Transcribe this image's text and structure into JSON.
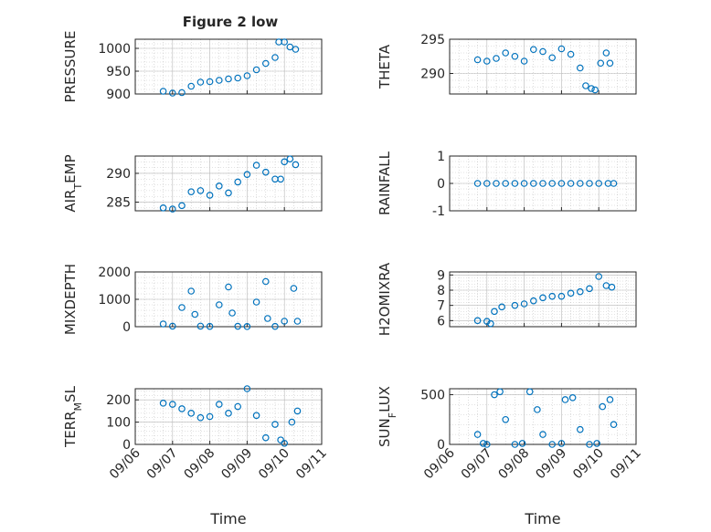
{
  "figure_title": "Figure 2 low",
  "colors": {
    "marker": "#0072BD",
    "axis": "#262626",
    "grid": "#b8b8b8"
  },
  "chart_data": [
    {
      "type": "scatter",
      "ylabel": "PRESSURE",
      "xlim": [
        0,
        5
      ],
      "ylim": [
        900,
        1020
      ],
      "yticks": [
        900,
        950,
        1000
      ],
      "xticklabels": [],
      "x": [
        0.75,
        1.0,
        1.25,
        1.5,
        1.75,
        2.0,
        2.25,
        2.5,
        2.75,
        3.0,
        3.25,
        3.5,
        3.75,
        3.85,
        4.0,
        4.15,
        4.3
      ],
      "y": [
        906,
        902,
        903,
        917,
        926,
        927,
        930,
        933,
        935,
        940,
        953,
        967,
        980,
        1014,
        1014,
        1003,
        998
      ]
    },
    {
      "type": "scatter",
      "ylabel": "THETA",
      "xlim": [
        0,
        5
      ],
      "ylim": [
        287,
        295
      ],
      "yticks": [
        290,
        295
      ],
      "xticklabels": [],
      "x": [
        0.75,
        1.0,
        1.25,
        1.5,
        1.75,
        2.0,
        2.25,
        2.5,
        2.75,
        3.0,
        3.25,
        3.5,
        3.65,
        3.8,
        3.9,
        4.05,
        4.2,
        4.3
      ],
      "y": [
        292.0,
        291.8,
        292.2,
        293.0,
        292.5,
        291.8,
        293.5,
        293.2,
        292.3,
        293.6,
        292.8,
        290.8,
        288.2,
        287.8,
        287.6,
        291.5,
        293.0,
        291.5
      ]
    },
    {
      "type": "scatter",
      "ylabel": "AIR_TEMP",
      "xlim": [
        0,
        5
      ],
      "ylim": [
        283.5,
        293
      ],
      "yticks": [
        285,
        290
      ],
      "xticklabels": [],
      "x": [
        0.75,
        1.0,
        1.25,
        1.5,
        1.75,
        2.0,
        2.25,
        2.5,
        2.75,
        3.0,
        3.25,
        3.5,
        3.75,
        3.9,
        4.0,
        4.15,
        4.3
      ],
      "y": [
        284.0,
        283.8,
        284.4,
        286.8,
        287.0,
        286.2,
        287.8,
        286.6,
        288.5,
        289.8,
        291.4,
        290.2,
        289.0,
        289.0,
        292.0,
        292.5,
        291.5
      ]
    },
    {
      "type": "scatter",
      "ylabel": "RAINFALL",
      "xlim": [
        0,
        5
      ],
      "ylim": [
        -1,
        1
      ],
      "yticks": [
        -1,
        0,
        1
      ],
      "xticklabels": [],
      "x": [
        0.75,
        1.0,
        1.25,
        1.5,
        1.75,
        2.0,
        2.25,
        2.5,
        2.75,
        3.0,
        3.25,
        3.5,
        3.75,
        4.0,
        4.25,
        4.4
      ],
      "y": [
        0,
        0,
        0,
        0,
        0,
        0,
        0,
        0,
        0,
        0,
        0,
        0,
        0,
        0,
        0,
        0
      ]
    },
    {
      "type": "scatter",
      "ylabel": "MIXDEPTH",
      "xlim": [
        0,
        5
      ],
      "ylim": [
        0,
        2000
      ],
      "yticks": [
        0,
        1000,
        2000
      ],
      "xticklabels": [],
      "x": [
        0.75,
        1.0,
        1.25,
        1.5,
        1.6,
        1.75,
        2.0,
        2.25,
        2.5,
        2.6,
        2.75,
        3.0,
        3.25,
        3.5,
        3.55,
        3.75,
        4.0,
        4.25,
        4.35
      ],
      "y": [
        100,
        20,
        700,
        1300,
        450,
        20,
        10,
        800,
        1450,
        500,
        15,
        5,
        900,
        1650,
        300,
        10,
        200,
        1400,
        200
      ]
    },
    {
      "type": "scatter",
      "ylabel": "H2OMIXRA",
      "xlim": [
        0,
        5
      ],
      "ylim": [
        5.6,
        9.2
      ],
      "yticks": [
        6,
        7,
        8,
        9
      ],
      "xticklabels": [],
      "x": [
        0.75,
        1.0,
        1.1,
        1.2,
        1.4,
        1.75,
        2.0,
        2.25,
        2.5,
        2.75,
        3.0,
        3.25,
        3.5,
        3.75,
        4.0,
        4.2,
        4.35
      ],
      "y": [
        6.0,
        5.95,
        5.8,
        6.6,
        6.9,
        7.0,
        7.1,
        7.3,
        7.5,
        7.6,
        7.6,
        7.8,
        7.9,
        8.1,
        8.9,
        8.3,
        8.2
      ]
    },
    {
      "type": "scatter",
      "ylabel": "TERR_MSL",
      "xlim": [
        0,
        5
      ],
      "ylim": [
        0,
        250
      ],
      "yticks": [
        0,
        100,
        200
      ],
      "xticklabels": [
        "09/06",
        "09/07",
        "09/08",
        "09/09",
        "09/10",
        "09/11"
      ],
      "xlabel": "Time",
      "x": [
        0.75,
        1.0,
        1.25,
        1.5,
        1.75,
        2.0,
        2.25,
        2.5,
        2.75,
        3.0,
        3.25,
        3.5,
        3.75,
        3.9,
        4.0,
        4.2,
        4.35
      ],
      "y": [
        185,
        180,
        160,
        140,
        120,
        125,
        180,
        140,
        170,
        250,
        130,
        30,
        90,
        20,
        5,
        100,
        150
      ]
    },
    {
      "type": "scatter",
      "ylabel": "SUN_FLUX",
      "xlim": [
        0,
        5
      ],
      "ylim": [
        0,
        560
      ],
      "yticks": [
        0,
        500
      ],
      "xticklabels": [
        "09/06",
        "09/07",
        "09/08",
        "09/09",
        "09/10",
        "09/11"
      ],
      "xlabel": "Time",
      "x": [
        0.75,
        0.9,
        1.0,
        1.2,
        1.35,
        1.5,
        1.75,
        1.95,
        2.15,
        2.35,
        2.5,
        2.75,
        3.0,
        3.1,
        3.3,
        3.5,
        3.75,
        3.95,
        4.1,
        4.3,
        4.4
      ],
      "y": [
        100,
        10,
        0,
        500,
        530,
        250,
        0,
        10,
        530,
        350,
        100,
        0,
        10,
        450,
        470,
        150,
        0,
        10,
        380,
        450,
        200
      ]
    }
  ]
}
